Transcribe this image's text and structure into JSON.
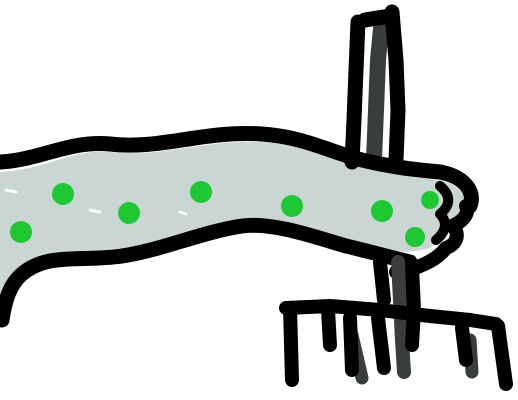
{
  "canvas": {
    "background": "#ffffff"
  },
  "drawing": {
    "subject": "hand-drawn-doodle",
    "colors": {
      "outline": "#000000",
      "outline_shadow": "#3a3d3e",
      "fill": "#c9d6d4",
      "dots": "#1ec832"
    }
  }
}
